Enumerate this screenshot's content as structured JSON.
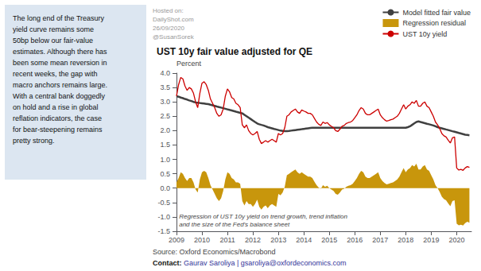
{
  "chart_data": {
    "type": "line",
    "title": "UST 10y fair value adjusted for QE",
    "ylabel": "Percent",
    "source": "Source: Oxford Economics/Macrobond",
    "contact": {
      "bold": "Contact:",
      "rest": " Gaurav Saroliya | gsaroliya@oxfordeconomics.com"
    },
    "hosted": [
      "Hosted on:",
      "DailyShot.com",
      "26/09/2020",
      "@SusanSorek"
    ],
    "text_box": [
      "The long end of the Treasury",
      "yield curve remains some",
      "50bp below our fair-value",
      "estimates. Although there has",
      "been some mean reversion in",
      "recent weeks, the gap with",
      "macro anchors remains large.",
      "With a central bank doggedly",
      "on hold and a rise in global",
      "reflation indicators, the case",
      "for bear-steepening remains",
      "pretty strong."
    ],
    "text_box_color": "#dce6f1",
    "annotations": [
      {
        "text": [
          "Regression of UST 10y yield on trend growth, trend inflation",
          "and the size of the Fed's balance sheet"
        ],
        "x": 2009.1,
        "y": -0.85
      }
    ],
    "x": [
      2009.0,
      2009.083,
      2009.167,
      2009.25,
      2009.333,
      2009.417,
      2009.5,
      2009.583,
      2009.667,
      2009.75,
      2009.833,
      2009.917,
      2010.0,
      2010.083,
      2010.167,
      2010.25,
      2010.333,
      2010.417,
      2010.5,
      2010.583,
      2010.667,
      2010.75,
      2010.833,
      2010.917,
      2011.0,
      2011.083,
      2011.167,
      2011.25,
      2011.333,
      2011.417,
      2011.5,
      2011.583,
      2011.667,
      2011.75,
      2011.833,
      2011.917,
      2012.0,
      2012.083,
      2012.167,
      2012.25,
      2012.333,
      2012.417,
      2012.5,
      2012.583,
      2012.667,
      2012.75,
      2012.833,
      2012.917,
      2013.0,
      2013.083,
      2013.167,
      2013.25,
      2013.333,
      2013.417,
      2013.5,
      2013.583,
      2013.667,
      2013.75,
      2013.833,
      2013.917,
      2014.0,
      2014.083,
      2014.167,
      2014.25,
      2014.333,
      2014.417,
      2014.5,
      2014.583,
      2014.667,
      2014.75,
      2014.833,
      2014.917,
      2015.0,
      2015.083,
      2015.167,
      2015.25,
      2015.333,
      2015.417,
      2015.5,
      2015.583,
      2015.667,
      2015.75,
      2015.833,
      2015.917,
      2016.0,
      2016.083,
      2016.167,
      2016.25,
      2016.333,
      2016.417,
      2016.5,
      2016.583,
      2016.667,
      2016.75,
      2016.833,
      2016.917,
      2017.0,
      2017.083,
      2017.167,
      2017.25,
      2017.333,
      2017.417,
      2017.5,
      2017.583,
      2017.667,
      2017.75,
      2017.833,
      2017.917,
      2018.0,
      2018.083,
      2018.167,
      2018.25,
      2018.333,
      2018.417,
      2018.5,
      2018.583,
      2018.667,
      2018.75,
      2018.833,
      2018.917,
      2019.0,
      2019.083,
      2019.167,
      2019.25,
      2019.333,
      2019.417,
      2019.5,
      2019.583,
      2019.667,
      2019.75,
      2019.833,
      2019.917,
      2020.0,
      2020.083,
      2020.167,
      2020.25,
      2020.333,
      2020.417,
      2020.5
    ],
    "series": [
      {
        "name": "Model fitted fair value",
        "type": "line",
        "color": "#404040",
        "values": [
          3.2,
          3.18,
          3.15,
          3.13,
          3.1,
          3.08,
          3.05,
          3.03,
          3.0,
          2.98,
          2.97,
          2.96,
          2.95,
          2.94,
          2.93,
          2.92,
          2.9,
          2.88,
          2.86,
          2.84,
          2.82,
          2.8,
          2.78,
          2.76,
          2.74,
          2.72,
          2.7,
          2.68,
          2.66,
          2.64,
          2.62,
          2.6,
          2.55,
          2.5,
          2.45,
          2.4,
          2.35,
          2.3,
          2.25,
          2.22,
          2.2,
          2.18,
          2.15,
          2.12,
          2.1,
          2.08,
          2.06,
          2.04,
          2.02,
          2.0,
          1.99,
          1.98,
          1.98,
          1.99,
          2.0,
          2.01,
          2.02,
          2.03,
          2.04,
          2.05,
          2.06,
          2.07,
          2.08,
          2.09,
          2.1,
          2.1,
          2.1,
          2.1,
          2.1,
          2.1,
          2.1,
          2.1,
          2.1,
          2.1,
          2.1,
          2.1,
          2.1,
          2.1,
          2.1,
          2.1,
          2.1,
          2.1,
          2.1,
          2.1,
          2.1,
          2.1,
          2.1,
          2.1,
          2.1,
          2.1,
          2.1,
          2.1,
          2.1,
          2.1,
          2.1,
          2.1,
          2.1,
          2.1,
          2.1,
          2.1,
          2.1,
          2.1,
          2.1,
          2.1,
          2.1,
          2.1,
          2.1,
          2.1,
          2.1,
          2.12,
          2.15,
          2.2,
          2.25,
          2.3,
          2.32,
          2.3,
          2.28,
          2.26,
          2.24,
          2.22,
          2.2,
          2.18,
          2.15,
          2.12,
          2.1,
          2.08,
          2.06,
          2.04,
          2.02,
          2.0,
          1.98,
          1.96,
          1.94,
          1.92,
          1.9,
          1.88,
          1.86,
          1.85,
          1.84
        ]
      },
      {
        "name": "Regression residual",
        "type": "area",
        "color": "#c8960c",
        "values": [
          0.2,
          0.35,
          0.55,
          0.5,
          0.35,
          0.25,
          0.35,
          0.35,
          0.2,
          -0.05,
          -0.15,
          0.3,
          0.55,
          0.6,
          0.55,
          0.35,
          0.1,
          -0.05,
          -0.2,
          -0.35,
          -0.45,
          -0.35,
          -0.1,
          0.3,
          0.55,
          0.5,
          0.35,
          0.3,
          0.2,
          0.2,
          0.15,
          -0.45,
          -0.6,
          -0.45,
          -0.55,
          -0.55,
          -0.65,
          -0.55,
          -0.4,
          -0.65,
          -0.75,
          -0.65,
          -0.6,
          -0.7,
          -0.6,
          -0.55,
          -0.6,
          -0.65,
          -0.2,
          -0.25,
          -0.15,
          0.05,
          0.45,
          0.5,
          0.55,
          0.6,
          0.65,
          0.55,
          0.5,
          0.55,
          0.5,
          0.45,
          0.4,
          0.4,
          0.35,
          0.22,
          0.1,
          0.02,
          -0.02,
          0.1,
          0.05,
          0.08,
          0.0,
          -0.05,
          -0.1,
          -0.2,
          -0.23,
          -0.15,
          -0.05,
          -0.02,
          0.05,
          0.08,
          0.1,
          0.15,
          0.25,
          0.35,
          0.5,
          0.6,
          0.55,
          0.4,
          0.35,
          0.35,
          0.4,
          0.45,
          0.5,
          0.55,
          0.35,
          0.25,
          0.18,
          0.13,
          0.15,
          0.18,
          0.2,
          0.25,
          0.3,
          0.4,
          0.55,
          0.7,
          0.55,
          0.65,
          0.7,
          0.8,
          0.75,
          0.85,
          0.65,
          0.65,
          0.75,
          0.8,
          0.65,
          0.6,
          0.45,
          0.3,
          0.1,
          0.0,
          -0.13,
          -0.3,
          -0.38,
          -0.42,
          -0.53,
          -0.63,
          -0.45,
          -0.42,
          -1.24,
          -1.29,
          -1.27,
          -1.3,
          -1.22,
          -1.17,
          -1.2
        ]
      },
      {
        "name": "UST 10y yield",
        "type": "line",
        "color": "#cc0000",
        "values": [
          3.2,
          3.6,
          3.85,
          3.8,
          3.55,
          3.4,
          3.5,
          3.45,
          3.3,
          3.0,
          2.8,
          3.3,
          3.65,
          3.7,
          3.6,
          3.4,
          3.1,
          2.95,
          2.8,
          2.6,
          2.5,
          2.55,
          2.75,
          3.2,
          3.45,
          3.35,
          3.15,
          3.1,
          2.95,
          2.9,
          2.8,
          2.2,
          2.1,
          2.2,
          2.0,
          1.9,
          1.85,
          1.9,
          1.97,
          1.7,
          1.55,
          1.6,
          1.65,
          1.6,
          1.65,
          1.7,
          1.65,
          1.6,
          1.9,
          1.85,
          1.9,
          2.1,
          2.5,
          2.55,
          2.65,
          2.7,
          2.75,
          2.65,
          2.6,
          2.72,
          2.68,
          2.65,
          2.6,
          2.6,
          2.55,
          2.42,
          2.3,
          2.22,
          2.18,
          2.3,
          2.25,
          2.28,
          2.2,
          2.15,
          2.1,
          2.0,
          1.97,
          2.05,
          2.15,
          2.18,
          2.25,
          2.28,
          2.3,
          2.35,
          2.45,
          2.55,
          2.7,
          2.8,
          2.75,
          2.6,
          2.55,
          2.55,
          2.6,
          2.65,
          2.7,
          2.75,
          2.55,
          2.45,
          2.38,
          2.33,
          2.35,
          2.38,
          2.4,
          2.45,
          2.5,
          2.6,
          2.75,
          2.9,
          2.75,
          2.85,
          2.9,
          3.0,
          2.95,
          3.05,
          2.85,
          2.85,
          2.95,
          3.0,
          2.85,
          2.8,
          2.65,
          2.5,
          2.3,
          2.2,
          2.07,
          1.9,
          1.82,
          1.78,
          1.67,
          1.57,
          1.75,
          1.78,
          0.7,
          0.63,
          0.65,
          0.62,
          0.7,
          0.75,
          0.72
        ]
      }
    ],
    "xlim": [
      2009,
      2020.58
    ],
    "xticks": [
      2009,
      2010,
      2011,
      2012,
      2013,
      2014,
      2015,
      2016,
      2017,
      2018,
      2019,
      2020
    ],
    "ylim": [
      -1.5,
      4.0
    ],
    "yticks": [
      -1.5,
      {
        "value": -1.0,
        "label": "-1.0"
      },
      -0.5,
      {
        "value": 0.0,
        "label": "0.0"
      },
      0.5,
      {
        "value": 1.0,
        "label": "1.0"
      },
      1.5,
      {
        "value": 2.0,
        "label": "2.0"
      },
      2.5,
      {
        "value": 3.0,
        "label": "3.0"
      },
      3.5,
      {
        "value": 4.0,
        "label": "4.0"
      }
    ],
    "grid": false,
    "legend": "upper right"
  }
}
